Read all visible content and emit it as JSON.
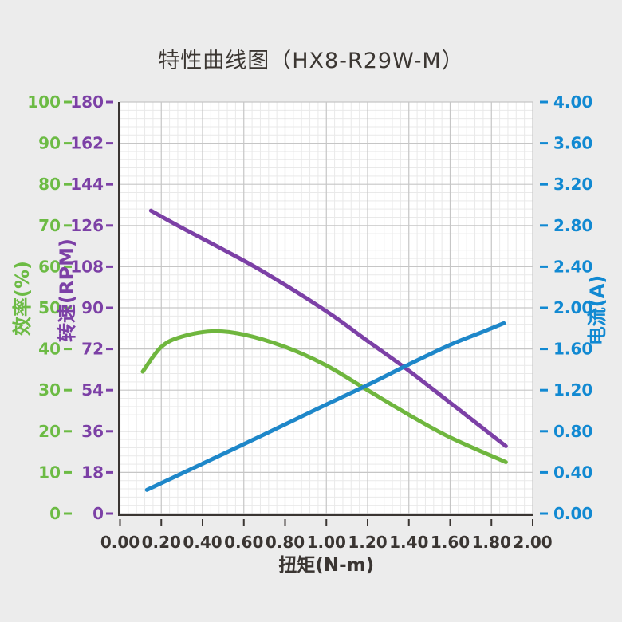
{
  "title": "特性曲线图（HX8-R29W-M）",
  "background_color": "#ececec",
  "plot_background_color": "#ffffff",
  "text_color": "#3a3532",
  "chart_data": {
    "type": "line",
    "title": "特性曲线图（HX8-R29W-M）",
    "grid": {
      "major_color": "#c6c6c6",
      "minor_color": "#e9e9e9",
      "minor_per_major": 5,
      "grid_on": true
    },
    "spine_color": "#3a3532",
    "x_axis": {
      "label": "扭矩(N-m)",
      "min": 0.0,
      "max": 2.0,
      "ticks": [
        "0.00",
        "0.20",
        "0.40",
        "0.60",
        "0.80",
        "1.00",
        "1.20",
        "1.40",
        "1.60",
        "1.80",
        "2.00"
      ],
      "color": "#3a3532"
    },
    "y_axes": [
      {
        "id": "efficiency",
        "label": "效率(%)",
        "min": 0,
        "max": 100,
        "ticks": [
          "100",
          "90",
          "80",
          "70",
          "60",
          "50",
          "40",
          "30",
          "20",
          "10",
          "0"
        ],
        "color": "#6cbb44"
      },
      {
        "id": "rpm",
        "label": "转速(RPM)",
        "min": 0,
        "max": 180,
        "ticks": [
          "180",
          "162",
          "144",
          "126",
          "108",
          "90",
          "72",
          "54",
          "36",
          "18",
          "0"
        ],
        "color": "#7c40a6"
      },
      {
        "id": "current",
        "label": "电流(A)",
        "min": 0.0,
        "max": 4.0,
        "ticks": [
          "4.00",
          "3.60",
          "3.20",
          "2.80",
          "2.40",
          "2.00",
          "1.60",
          "1.20",
          "0.80",
          "0.40",
          "0.00"
        ],
        "color": "#1189d2"
      }
    ],
    "series": [
      {
        "name": "转速(RPM)",
        "axis": "rpm",
        "color": "#7c40a6",
        "points": [
          [
            0.15,
            132.5
          ],
          [
            0.3,
            125
          ],
          [
            0.5,
            115.5
          ],
          [
            0.7,
            105.5
          ],
          [
            1.0,
            88.5
          ],
          [
            1.2,
            75.5
          ],
          [
            1.4,
            62.5
          ],
          [
            1.6,
            48.5
          ],
          [
            1.87,
            29.5
          ]
        ]
      },
      {
        "name": "效率(%)",
        "axis": "efficiency",
        "color": "#6fb63e",
        "points": [
          [
            0.11,
            34.5
          ],
          [
            0.2,
            40.5
          ],
          [
            0.3,
            43
          ],
          [
            0.45,
            44.3
          ],
          [
            0.6,
            43.5
          ],
          [
            0.8,
            40.5
          ],
          [
            1.0,
            36
          ],
          [
            1.2,
            30
          ],
          [
            1.4,
            24
          ],
          [
            1.6,
            18.5
          ],
          [
            1.87,
            12.5
          ]
        ]
      },
      {
        "name": "电流(A)",
        "axis": "current",
        "color": "#1e87c9",
        "points": [
          [
            0.13,
            0.23
          ],
          [
            0.3,
            0.39
          ],
          [
            0.5,
            0.58
          ],
          [
            0.7,
            0.77
          ],
          [
            1.0,
            1.06
          ],
          [
            1.2,
            1.25
          ],
          [
            1.4,
            1.45
          ],
          [
            1.6,
            1.64
          ],
          [
            1.75,
            1.76
          ],
          [
            1.86,
            1.85
          ]
        ]
      }
    ]
  }
}
